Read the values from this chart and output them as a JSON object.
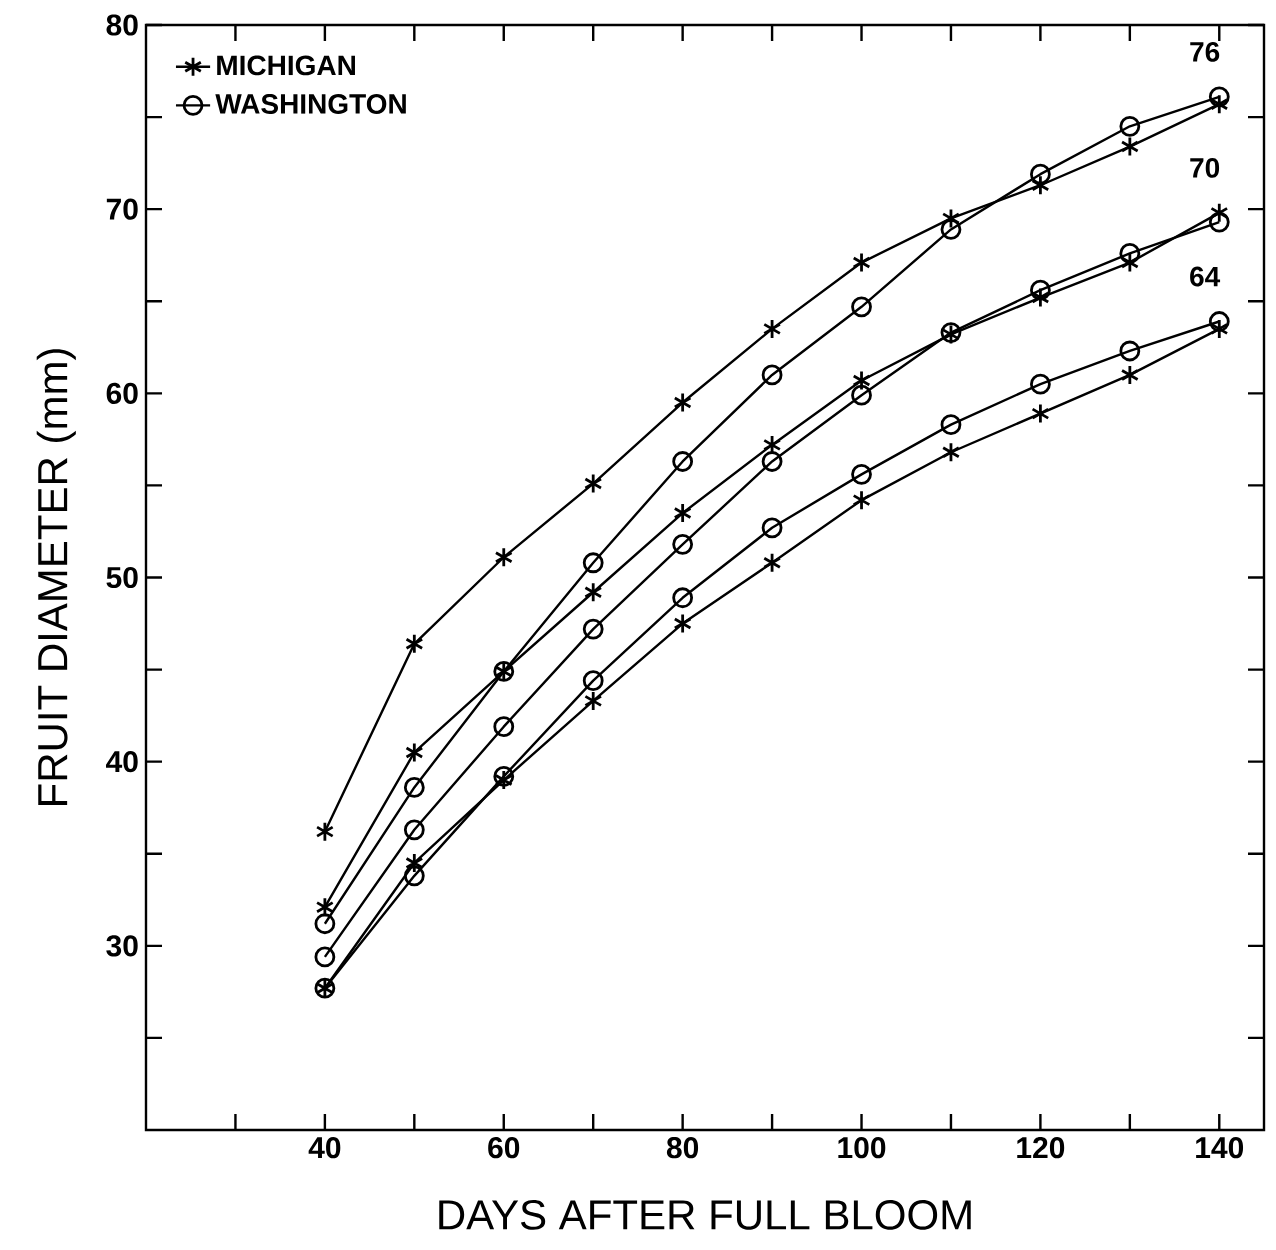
{
  "chart_data": {
    "type": "line",
    "xlabel": "DAYS AFTER FULL BLOOM",
    "ylabel": "FRUIT DIAMETER (mm)",
    "x": [
      40,
      50,
      60,
      70,
      80,
      90,
      100,
      110,
      120,
      130,
      140
    ],
    "series": [
      {
        "name": "MICHIGAN",
        "color": "#000000",
        "marker": "cross",
        "values": [
          36.2,
          46.4,
          51.1,
          55.1,
          59.5,
          63.5,
          67.1,
          69.5,
          71.3,
          73.4,
          75.7
        ]
      },
      {
        "name": "WASHINGTON",
        "color": "#000000",
        "marker": "circle",
        "values": [
          31.2,
          38.6,
          44.9,
          50.8,
          56.3,
          61.0,
          64.7,
          68.9,
          71.9,
          74.5,
          76.1
        ]
      },
      {
        "color": "#000000",
        "marker": "cross",
        "values": [
          32.1,
          40.5,
          44.9,
          49.2,
          53.5,
          57.2,
          60.7,
          63.2,
          65.2,
          67.1,
          69.8
        ]
      },
      {
        "color": "#000000",
        "marker": "circle",
        "values": [
          29.4,
          36.3,
          41.9,
          47.2,
          51.8,
          56.3,
          59.9,
          63.3,
          65.6,
          67.6,
          69.3
        ]
      },
      {
        "color": "#000000",
        "marker": "cross",
        "values": [
          27.7,
          34.5,
          39.0,
          43.3,
          47.5,
          50.8,
          54.2,
          56.8,
          58.9,
          61.0,
          63.5
        ]
      },
      {
        "color": "#000000",
        "marker": "circle",
        "values": [
          27.7,
          33.8,
          39.2,
          44.4,
          48.9,
          52.7,
          55.6,
          58.3,
          60.5,
          62.3,
          63.9
        ]
      }
    ],
    "annotations": [
      "76",
      "70",
      "64"
    ],
    "xlim": [
      20,
      145
    ],
    "ylim": [
      20,
      80
    ],
    "xticks": [
      {
        "value": 30,
        "label": null
      },
      40,
      {
        "value": 50,
        "label": null
      },
      60,
      {
        "value": 70,
        "label": null
      },
      80,
      {
        "value": 90,
        "label": null
      },
      100,
      {
        "value": 110,
        "label": null
      },
      120,
      {
        "value": 130,
        "label": null
      },
      140
    ],
    "yticks": [
      {
        "value": 25,
        "label": null
      },
      30,
      {
        "value": 35,
        "label": null
      },
      40,
      {
        "value": 45,
        "label": null
      },
      50,
      {
        "value": 55,
        "label": null
      },
      60,
      {
        "value": 65,
        "label": null
      },
      70,
      {
        "value": 75,
        "label": null
      },
      80
    ],
    "legend": "top left",
    "line_style": "solid"
  }
}
